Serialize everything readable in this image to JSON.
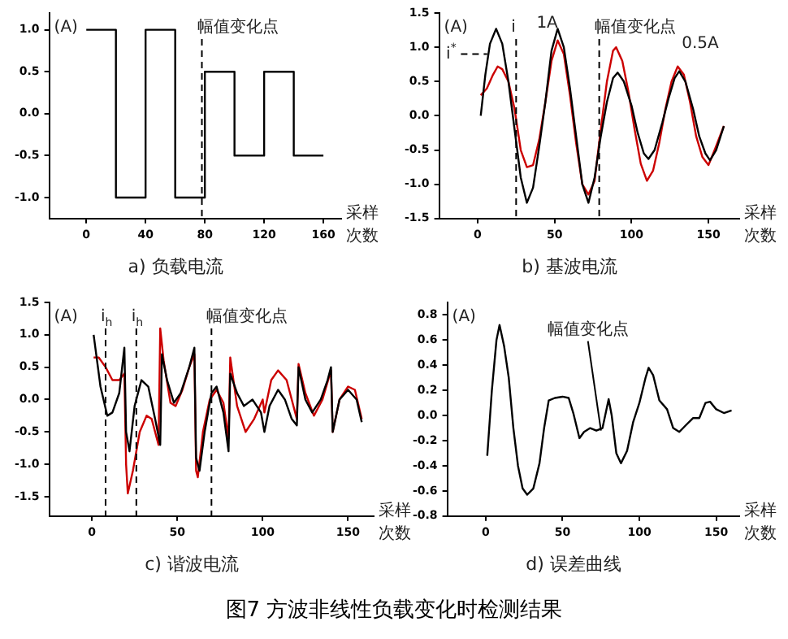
{
  "chart_data": [
    {
      "type": "step",
      "title": "a) 负载电流",
      "xlabel": "采样次数",
      "ylabel": "(A)",
      "xlim": [
        -25,
        172
      ],
      "xticks": [
        0,
        40,
        80,
        120,
        160
      ],
      "ylim": [
        -1.25,
        1.2
      ],
      "yticks": [
        {
          "value": 1,
          "label": "1.0"
        },
        0.5,
        {
          "value": 0,
          "label": "0.0"
        },
        -0.5,
        {
          "value": -1,
          "label": "-1.0"
        }
      ],
      "grid": false,
      "legend": false,
      "ref_lines": [
        {
          "axis": "x",
          "value": 78,
          "label": "幅值变化点",
          "line_style": "dashed"
        }
      ],
      "series": [
        {
          "color": "#000000",
          "x": [
            0,
            20,
            40,
            60,
            80,
            100,
            120,
            140,
            160
          ],
          "values": [
            1,
            -1,
            1,
            -1,
            0.5,
            -0.5,
            0.5,
            -0.5,
            -0.5
          ]
        }
      ]
    },
    {
      "type": "line",
      "title": "b) 基波电流",
      "xlabel": "采样次数",
      "ylabel": "(A)",
      "xlim": [
        -25,
        170
      ],
      "xticks": [
        0,
        50,
        100,
        150
      ],
      "ylim": [
        -1.5,
        1.5
      ],
      "yticks": [
        -1.5,
        {
          "value": -1,
          "label": "-1.0"
        },
        -0.5,
        {
          "value": 0,
          "label": "0.0"
        },
        0.5,
        {
          "value": 1,
          "label": "1.0"
        },
        1.5
      ],
      "grid": false,
      "legend": false,
      "ref_lines": [
        {
          "axis": "x",
          "value": 25,
          "label": "i",
          "line_style": "dashed"
        },
        {
          "axis": "x",
          "value": 79,
          "label": "幅值变化点",
          "line_style": "dashed"
        }
      ],
      "annotations": [
        "1A",
        "0.5A",
        "i$^{*}$"
      ],
      "series": [
        {
          "color": "#000000",
          "x": [
            2,
            5,
            8,
            12,
            16,
            20,
            24,
            28,
            32,
            36,
            40,
            44,
            48,
            52,
            56,
            60,
            64,
            68,
            72,
            76,
            80,
            84,
            88,
            91,
            95,
            100,
            104,
            108,
            111,
            115,
            120,
            124,
            128,
            131,
            135,
            140,
            144,
            148,
            151,
            155,
            160
          ],
          "values": [
            0,
            0.6,
            1.05,
            1.27,
            1.05,
            0.5,
            -0.2,
            -0.9,
            -1.27,
            -1.05,
            -0.45,
            0.2,
            0.95,
            1.27,
            1,
            0.4,
            -0.3,
            -1,
            -1.27,
            -0.9,
            -0.3,
            0.2,
            0.55,
            0.63,
            0.5,
            0.15,
            -0.25,
            -0.55,
            -0.63,
            -0.5,
            -0.1,
            0.25,
            0.55,
            0.65,
            0.5,
            0.1,
            -0.3,
            -0.55,
            -0.65,
            -0.5,
            -0.15
          ]
        },
        {
          "color": "#cc0000",
          "x": [
            2,
            6,
            10,
            13,
            16,
            20,
            24,
            28,
            32,
            36,
            40,
            44,
            48,
            52,
            56,
            60,
            64,
            68,
            72,
            76,
            80,
            84,
            88,
            90,
            94,
            98,
            102,
            106,
            110,
            114,
            118,
            122,
            126,
            130,
            134,
            138,
            142,
            146,
            150,
            154,
            160
          ],
          "values": [
            0.3,
            0.4,
            0.6,
            0.72,
            0.68,
            0.5,
            0.1,
            -0.5,
            -0.75,
            -0.72,
            -0.35,
            0.2,
            0.8,
            1.1,
            0.9,
            0.3,
            -0.4,
            -1,
            -1.15,
            -0.95,
            -0.2,
            0.5,
            0.95,
            1,
            0.8,
            0.35,
            -0.2,
            -0.7,
            -0.95,
            -0.8,
            -0.4,
            0.1,
            0.5,
            0.72,
            0.6,
            0.2,
            -0.3,
            -0.6,
            -0.72,
            -0.5,
            -0.15
          ]
        }
      ]
    },
    {
      "type": "line",
      "title": "c) 谐波电流",
      "xlabel": "采样次数",
      "ylabel": "(A)",
      "xlim": [
        -25,
        165
      ],
      "xticks": [
        0,
        50,
        100,
        150
      ],
      "ylim": [
        -1.8,
        1.5
      ],
      "yticks": [
        -1.5,
        {
          "value": -1,
          "label": "-1.0"
        },
        -0.5,
        {
          "value": 0,
          "label": "0.0"
        },
        0.5,
        {
          "value": 1,
          "label": "1.0"
        },
        1.5
      ],
      "grid": false,
      "legend": false,
      "ref_lines": [
        {
          "axis": "x",
          "value": 8,
          "label": "i$_{h}$",
          "line_style": "dashed"
        },
        {
          "axis": "x",
          "value": 26,
          "label": "i$_{h}$",
          "line_style": "dashed"
        },
        {
          "axis": "x",
          "value": 70,
          "label": "幅值变化点",
          "line_style": "dashed"
        }
      ],
      "series": [
        {
          "color": "#000000",
          "x": [
            1,
            5,
            9,
            12,
            16,
            19,
            20,
            22,
            25,
            29,
            33,
            37,
            40,
            41,
            44,
            48,
            52,
            57,
            60,
            61,
            63,
            66,
            70,
            73,
            77,
            80,
            81,
            85,
            89,
            94,
            99,
            101,
            104,
            109,
            113,
            117,
            120,
            121,
            125,
            129,
            134,
            138,
            140,
            141,
            145,
            150,
            155,
            158
          ],
          "values": [
            1,
            0.2,
            -0.25,
            -0.2,
            0.1,
            0.8,
            -0.5,
            -0.8,
            -0.1,
            0.3,
            0.2,
            -0.3,
            -0.7,
            0.7,
            0.3,
            -0.05,
            0.1,
            0.5,
            0.8,
            -0.9,
            -1.1,
            -0.5,
            0.1,
            0.2,
            -0.2,
            -0.8,
            0.4,
            0.1,
            -0.1,
            0,
            -0.2,
            -0.5,
            -0.1,
            0.15,
            0,
            -0.3,
            -0.4,
            0.5,
            0,
            -0.2,
            0,
            0.3,
            0.5,
            -0.5,
            0,
            0.15,
            0,
            -0.35
          ]
        },
        {
          "color": "#cc0000",
          "x": [
            1,
            4,
            8,
            12,
            16,
            19,
            20,
            21,
            24,
            28,
            32,
            35,
            39,
            40,
            42,
            46,
            49,
            53,
            57,
            60,
            61,
            62,
            65,
            69,
            73,
            77,
            80,
            81,
            85,
            90,
            95,
            100,
            101,
            105,
            109,
            114,
            120,
            121,
            125,
            130,
            135,
            140,
            141,
            145,
            150,
            154,
            158
          ],
          "values": [
            0.65,
            0.65,
            0.5,
            0.3,
            0.3,
            0.4,
            -1,
            -1.45,
            -1.1,
            -0.5,
            -0.25,
            -0.3,
            -0.7,
            1.1,
            0.6,
            -0.05,
            -0.1,
            0.15,
            0.5,
            0.7,
            -1.1,
            -1.2,
            -0.5,
            0,
            0.15,
            -0.05,
            -0.6,
            0.65,
            -0.1,
            -0.5,
            -0.3,
            0,
            -0.2,
            0.3,
            0.45,
            0.3,
            -0.3,
            0.55,
            0.1,
            -0.25,
            0,
            0.45,
            -0.5,
            0,
            0.2,
            0.15,
            -0.3
          ]
        }
      ]
    },
    {
      "type": "line",
      "title": "d) 误差曲线",
      "xlabel": "采样次数",
      "ylabel": "(A)",
      "xlim": [
        -25,
        165
      ],
      "xticks": [
        0,
        50,
        100,
        150
      ],
      "ylim": [
        -0.8,
        0.9
      ],
      "yticks": [
        {
          "value": -0.8,
          "label": "-0.8"
        },
        {
          "value": -0.6,
          "label": "-0.6"
        },
        {
          "value": -0.4,
          "label": "-0.4"
        },
        {
          "value": -0.2,
          "label": "-0.2"
        },
        {
          "value": 0,
          "label": "0.0"
        },
        0.2,
        0.4,
        0.6,
        0.8
      ],
      "grid": false,
      "legend": false,
      "annotations": [
        {
          "text": "幅值变化点",
          "x": 75,
          "y": -0.12
        }
      ],
      "series": [
        {
          "color": "#000000",
          "x": [
            1,
            4,
            7,
            9,
            12,
            15,
            18,
            21,
            24,
            27,
            31,
            35,
            38,
            41,
            45,
            50,
            54,
            57,
            61,
            64,
            68,
            72,
            76,
            80,
            82,
            85,
            88,
            92,
            96,
            100,
            104,
            106,
            109,
            113,
            118,
            122,
            126,
            130,
            135,
            139,
            143,
            146,
            150,
            155,
            160
          ],
          "values": [
            -0.32,
            0.2,
            0.6,
            0.72,
            0.55,
            0.3,
            -0.1,
            -0.4,
            -0.58,
            -0.63,
            -0.58,
            -0.38,
            -0.1,
            0.12,
            0.14,
            0.15,
            0.14,
            0.02,
            -0.18,
            -0.13,
            -0.1,
            -0.12,
            -0.1,
            0.13,
            0,
            -0.3,
            -0.38,
            -0.28,
            -0.05,
            0.1,
            0.3,
            0.38,
            0.32,
            0.12,
            0.05,
            -0.1,
            -0.13,
            -0.08,
            -0.02,
            -0.02,
            0.1,
            0.11,
            0.05,
            0.02,
            0.04
          ]
        }
      ]
    },
    {
      "type": "other",
      "title": "图7 方波非线性负载变化时检测结果"
    }
  ]
}
